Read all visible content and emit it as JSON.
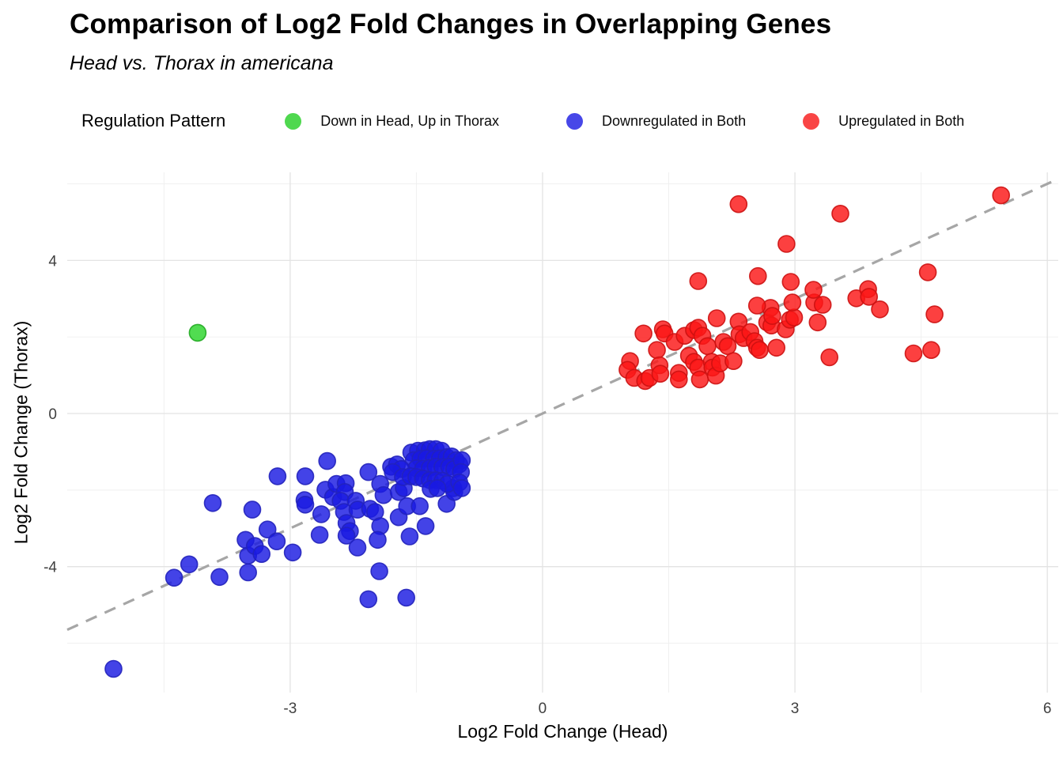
{
  "chart_data": {
    "type": "scatter",
    "title": "Comparison of Log2 Fold Changes in Overlapping Genes",
    "subtitle": "Head vs. Thorax in americana",
    "xlabel": "Log2 Fold Change (Head)",
    "ylabel": "Log2 Fold Change (Thorax)",
    "x_axis": {
      "ticks": [
        -3,
        0,
        3,
        6
      ],
      "minor_ticks": [
        -4.5,
        -1.5,
        1.5,
        4.5
      ],
      "range": [
        -5.65,
        6.13
      ]
    },
    "y_axis": {
      "ticks": [
        -4,
        0,
        4
      ],
      "minor_ticks": [
        -6,
        -2,
        2,
        6
      ],
      "range": [
        -7.29,
        6.3
      ]
    },
    "grid": "on",
    "legend_position": "top",
    "identity_line": {
      "style": "dashed",
      "color": "#a6a6a6",
      "width": 3.2,
      "dash": "15 11",
      "points": [
        [
          -5.65,
          -5.65
        ],
        [
          6.13,
          6.13
        ]
      ]
    },
    "marker": {
      "radius": 10.5,
      "opacity": 0.82,
      "stroke_width": 1.6
    },
    "grid_major_color": "#e3e3e3",
    "grid_minor_color": "#efefef",
    "tick_label_color": "#404040",
    "series": [
      {
        "name": "Down in Head, Up in Thorax",
        "fill": "#2bd42b",
        "stroke": "#22aa22",
        "points": [
          [
            -4.1,
            2.11
          ]
        ]
      },
      {
        "name": "Downregulated in Both",
        "fill": "#1a1ae2",
        "stroke": "#2222bb",
        "points": [
          [
            -5.1,
            -6.67
          ],
          [
            -4.38,
            -4.29
          ],
          [
            -4.2,
            -3.94
          ],
          [
            -3.92,
            -2.34
          ],
          [
            -3.84,
            -4.27
          ],
          [
            -3.53,
            -3.3
          ],
          [
            -3.5,
            -3.71
          ],
          [
            -3.5,
            -4.15
          ],
          [
            -3.45,
            -2.51
          ],
          [
            -3.42,
            -3.46
          ],
          [
            -3.34,
            -3.67
          ],
          [
            -3.27,
            -3.03
          ],
          [
            -3.16,
            -3.34
          ],
          [
            -3.15,
            -1.64
          ],
          [
            -2.97,
            -3.63
          ],
          [
            -2.82,
            -1.64
          ],
          [
            -2.83,
            -2.26
          ],
          [
            -2.82,
            -2.38
          ],
          [
            -2.56,
            -1.24
          ],
          [
            -2.63,
            -2.63
          ],
          [
            -2.65,
            -3.17
          ],
          [
            -2.58,
            -1.99
          ],
          [
            -2.49,
            -2.18
          ],
          [
            -2.45,
            -1.84
          ],
          [
            -2.34,
            -1.82
          ],
          [
            -2.35,
            -2.05
          ],
          [
            -2.4,
            -2.28
          ],
          [
            -2.36,
            -2.57
          ],
          [
            -2.33,
            -2.86
          ],
          [
            -2.29,
            -3.07
          ],
          [
            -2.33,
            -3.19
          ],
          [
            -2.22,
            -2.28
          ],
          [
            -2.2,
            -2.51
          ],
          [
            -2.2,
            -3.5
          ],
          [
            -2.07,
            -1.53
          ],
          [
            -2.05,
            -2.49
          ],
          [
            -1.99,
            -2.57
          ],
          [
            -1.93,
            -1.84
          ],
          [
            -1.89,
            -2.13
          ],
          [
            -1.93,
            -2.94
          ],
          [
            -1.96,
            -3.3
          ],
          [
            -1.94,
            -4.12
          ],
          [
            -2.07,
            -4.85
          ],
          [
            -1.62,
            -4.81
          ],
          [
            -1.8,
            -1.39
          ],
          [
            -1.71,
            -2.05
          ],
          [
            -1.65,
            -1.95
          ],
          [
            -1.71,
            -2.71
          ],
          [
            -1.61,
            -2.42
          ],
          [
            -1.58,
            -3.21
          ],
          [
            -1.46,
            -2.42
          ],
          [
            -1.39,
            -2.94
          ],
          [
            -1.14,
            -2.36
          ],
          [
            -1.06,
            -1.95
          ],
          [
            -1.05,
            -2.05
          ],
          [
            -1.56,
            -1.02
          ],
          [
            -1.48,
            -0.97
          ],
          [
            -1.4,
            -0.96
          ],
          [
            -1.34,
            -0.93
          ],
          [
            -1.27,
            -0.93
          ],
          [
            -1.2,
            -0.97
          ],
          [
            -1.53,
            -1.22
          ],
          [
            -1.45,
            -1.18
          ],
          [
            -1.38,
            -1.17
          ],
          [
            -1.29,
            -1.18
          ],
          [
            -1.22,
            -1.17
          ],
          [
            -1.14,
            -1.14
          ],
          [
            -1.08,
            -1.12
          ],
          [
            -1.03,
            -1.22
          ],
          [
            -0.99,
            -1.33
          ],
          [
            -1.5,
            -1.43
          ],
          [
            -1.42,
            -1.44
          ],
          [
            -1.34,
            -1.42
          ],
          [
            -1.27,
            -1.39
          ],
          [
            -1.19,
            -1.4
          ],
          [
            -1.11,
            -1.39
          ],
          [
            -1.05,
            -1.45
          ],
          [
            -1.73,
            -1.33
          ],
          [
            -1.68,
            -1.45
          ],
          [
            -1.78,
            -1.53
          ],
          [
            -1.66,
            -1.66
          ],
          [
            -1.57,
            -1.64
          ],
          [
            -1.5,
            -1.66
          ],
          [
            -1.42,
            -1.7
          ],
          [
            -1.34,
            -1.74
          ],
          [
            -1.27,
            -1.74
          ],
          [
            -1.19,
            -1.76
          ],
          [
            -1.13,
            -1.84
          ],
          [
            -1.33,
            -1.97
          ],
          [
            -1.25,
            -1.95
          ],
          [
            -0.96,
            -1.22
          ],
          [
            -0.97,
            -1.53
          ],
          [
            -0.99,
            -1.8
          ],
          [
            -0.96,
            -1.95
          ]
        ]
      },
      {
        "name": "Upregulated in Both",
        "fill": "#fb1616",
        "stroke": "#cc1111",
        "points": [
          [
            1.04,
            1.37
          ],
          [
            1.01,
            1.14
          ],
          [
            1.09,
            0.93
          ],
          [
            1.2,
            2.09
          ],
          [
            1.22,
            0.85
          ],
          [
            1.27,
            0.93
          ],
          [
            1.36,
            1.66
          ],
          [
            1.39,
            1.26
          ],
          [
            1.4,
            1.04
          ],
          [
            1.43,
            2.2
          ],
          [
            1.45,
            2.09
          ],
          [
            1.57,
            1.87
          ],
          [
            1.62,
            1.06
          ],
          [
            1.62,
            0.89
          ],
          [
            1.69,
            2.03
          ],
          [
            1.74,
            1.51
          ],
          [
            1.8,
            2.18
          ],
          [
            1.85,
            2.24
          ],
          [
            1.8,
            1.35
          ],
          [
            1.85,
            1.2
          ],
          [
            1.87,
            0.89
          ],
          [
            1.9,
            2.03
          ],
          [
            1.96,
            1.76
          ],
          [
            2.01,
            1.35
          ],
          [
            2.02,
            1.2
          ],
          [
            2.06,
            0.99
          ],
          [
            2.07,
            2.49
          ],
          [
            2.11,
            1.31
          ],
          [
            2.15,
            1.87
          ],
          [
            2.2,
            1.76
          ],
          [
            2.27,
            1.37
          ],
          [
            2.33,
            2.4
          ],
          [
            2.34,
            2.07
          ],
          [
            2.39,
            1.97
          ],
          [
            2.47,
            2.13
          ],
          [
            2.52,
            1.89
          ],
          [
            2.55,
            1.72
          ],
          [
            2.58,
            1.66
          ],
          [
            2.67,
            2.38
          ],
          [
            2.71,
            2.76
          ],
          [
            2.72,
            2.3
          ],
          [
            2.78,
            1.72
          ],
          [
            2.89,
            2.2
          ],
          [
            2.94,
            2.45
          ],
          [
            2.99,
            2.51
          ],
          [
            2.97,
            2.9
          ],
          [
            3.23,
            2.9
          ],
          [
            3.27,
            2.38
          ],
          [
            3.33,
            2.84
          ],
          [
            3.41,
            1.47
          ],
          [
            2.73,
            2.55
          ],
          [
            2.55,
            2.82
          ],
          [
            3.22,
            3.23
          ],
          [
            2.33,
            5.47
          ],
          [
            3.54,
            5.22
          ],
          [
            2.9,
            4.43
          ],
          [
            1.85,
            3.46
          ],
          [
            2.56,
            3.59
          ],
          [
            2.95,
            3.44
          ],
          [
            3.73,
            3.01
          ],
          [
            3.87,
            3.25
          ],
          [
            3.88,
            3.05
          ],
          [
            4.01,
            2.72
          ],
          [
            5.45,
            5.7
          ],
          [
            4.58,
            3.69
          ],
          [
            4.66,
            2.59
          ],
          [
            4.41,
            1.57
          ],
          [
            4.62,
            1.66
          ]
        ]
      }
    ]
  },
  "legend": {
    "title": "Regulation Pattern",
    "items": [
      {
        "label": "Down in Head, Up in Thorax",
        "color": "#4fd84f"
      },
      {
        "label": "Downregulated in Both",
        "color": "#4747e8"
      },
      {
        "label": "Upregulated in Both",
        "color": "#f94545"
      }
    ]
  }
}
